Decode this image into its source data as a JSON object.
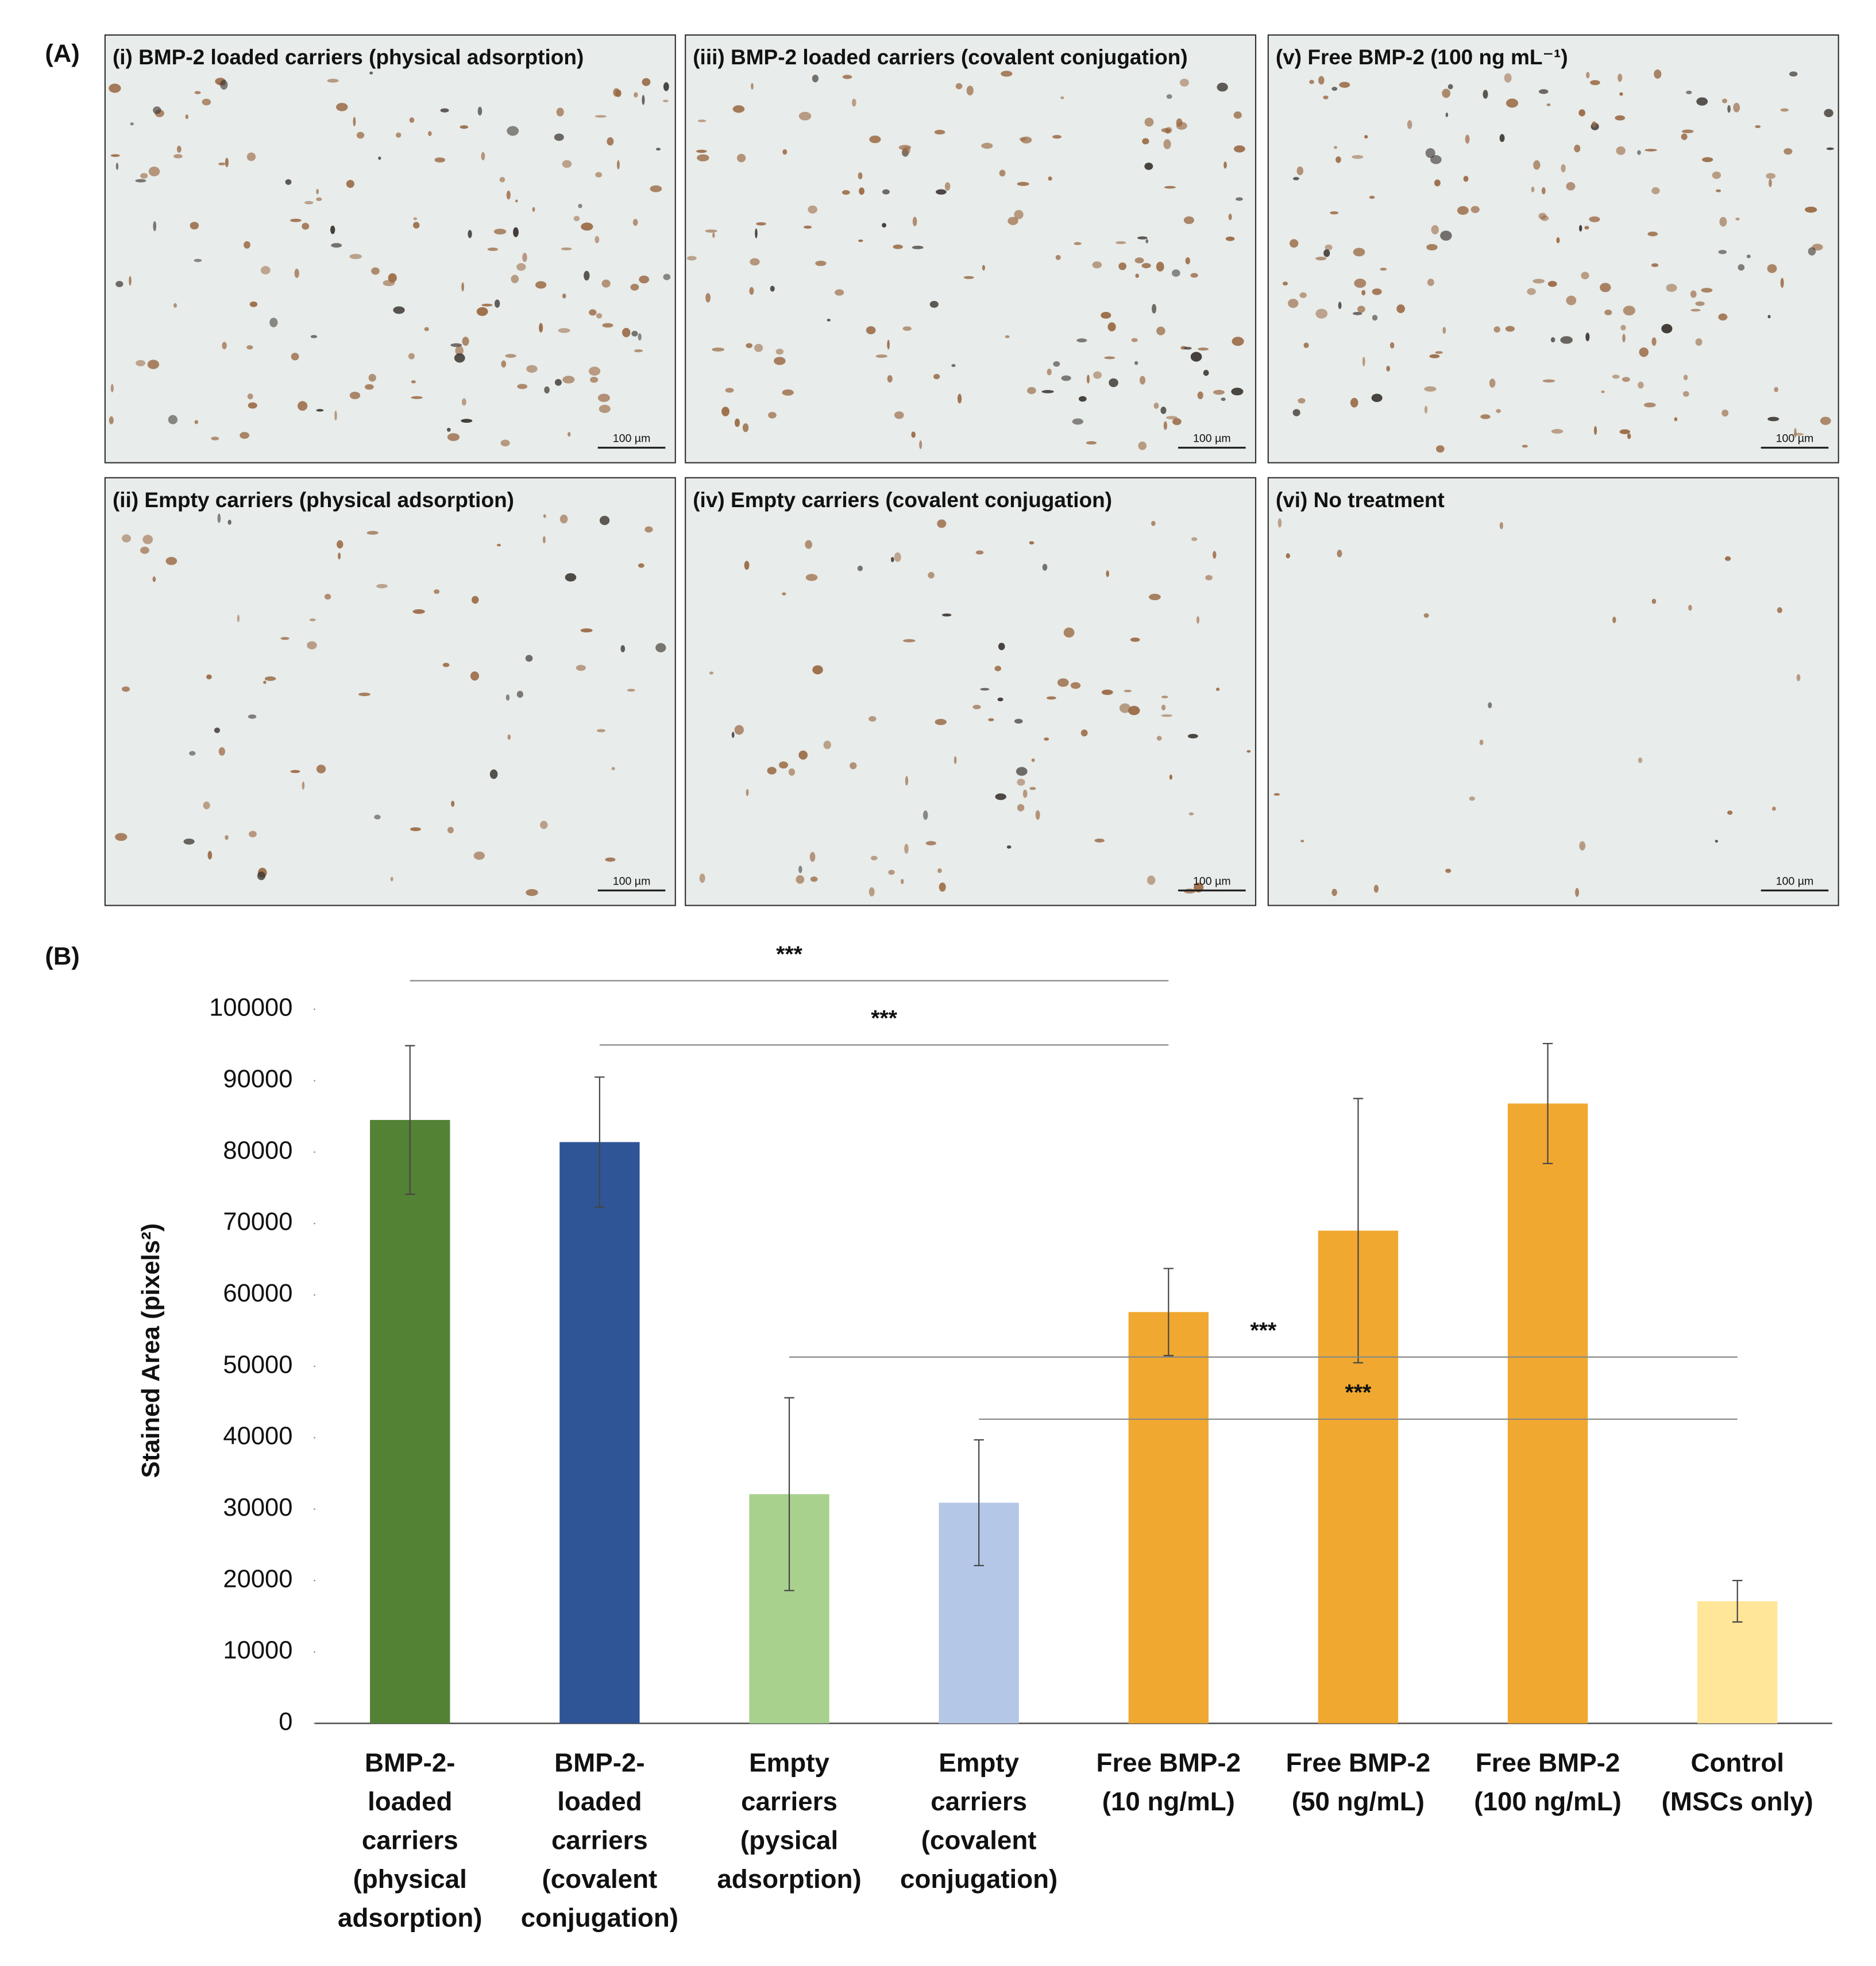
{
  "panel_a": {
    "label": "(A)",
    "panels": [
      {
        "title": "(i) BMP-2 loaded carriers (physical adsorption)",
        "scale_bar": "100 µm"
      },
      {
        "title": "(iii) BMP-2 loaded carriers (covalent conjugation)",
        "scale_bar": "100 µm"
      },
      {
        "title": "(v) Free BMP-2 (100 ng mL⁻¹)",
        "scale_bar": "100 µm"
      },
      {
        "title": "(ii) Empty carriers (physical adsorption)",
        "scale_bar": "100 µm"
      },
      {
        "title": "(iv) Empty carriers (covalent conjugation)",
        "scale_bar": "100 µm"
      },
      {
        "title": "(vi) No treatment",
        "scale_bar": "100 µm"
      }
    ]
  },
  "chart_data": {
    "type": "bar",
    "label": "(B)",
    "y_label": "Stained Area (pixels²)",
    "categories": [
      [
        "BMP-2-",
        "loaded",
        "carriers",
        "(physical",
        "adsorption)"
      ],
      [
        "BMP-2-",
        "loaded",
        "carriers",
        "(covalent",
        "conjugation)"
      ],
      [
        "Empty",
        "carriers",
        "(pysical",
        "adsorption)"
      ],
      [
        "Empty",
        "carriers",
        "(covalent",
        "conjugation)"
      ],
      [
        "Free BMP-2",
        "(10 ng/mL)"
      ],
      [
        "Free BMP-2",
        "(50 ng/mL)"
      ],
      [
        "Free BMP-2",
        "(100 ng/mL)"
      ],
      [
        "Control",
        "(MSCs only)"
      ]
    ],
    "values": [
      84500,
      81400,
      32100,
      30900,
      57600,
      69000,
      86800,
      17100
    ],
    "errors": [
      10400,
      9100,
      13500,
      8800,
      6100,
      18500,
      8400,
      2900
    ],
    "colors": [
      "#548235",
      "#2f5597",
      "#a9d18e",
      "#b4c7e7",
      "#f0a830",
      "#f0a830",
      "#f0a830",
      "#ffe699"
    ],
    "ylim": [
      0,
      100000
    ],
    "yticks": [
      0,
      10000,
      20000,
      30000,
      40000,
      50000,
      60000,
      70000,
      80000,
      90000,
      100000
    ],
    "grid": false,
    "annotations": [
      {
        "label": "***",
        "from": 0,
        "to": 4,
        "y": 104000
      },
      {
        "label": "***",
        "from": 1,
        "to": 4,
        "y": 95000
      },
      {
        "label": "***",
        "from": 2,
        "to": 7,
        "y": 51300
      },
      {
        "label": "***",
        "from": 3,
        "to": 7,
        "y": 42600
      }
    ]
  }
}
